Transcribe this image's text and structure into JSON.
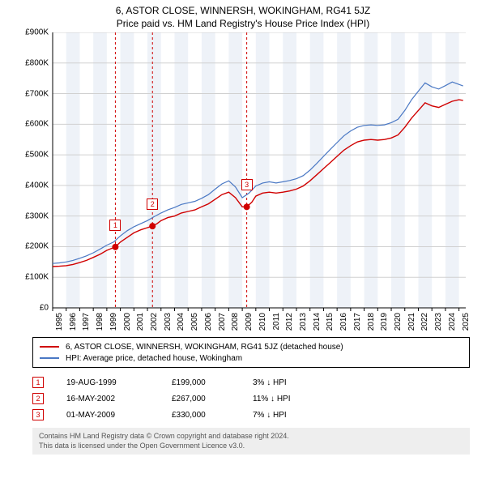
{
  "title": "6, ASTOR CLOSE, WINNERSH, WOKINGHAM, RG41 5JZ",
  "subtitle": "Price paid vs. HM Land Registry's House Price Index (HPI)",
  "chart": {
    "type": "line",
    "plot_bg": "#ffffff",
    "band_bg": "#eef2f8",
    "grid_color": "#d0d0d0",
    "y": {
      "min": 0,
      "max": 900000,
      "step": 100000,
      "label_prefix": "£",
      "label_suffix": "K",
      "divisor": 1000
    },
    "x": {
      "min": 1995,
      "max": 2025.5,
      "ticks": [
        1995,
        1996,
        1997,
        1998,
        1999,
        2000,
        2001,
        2002,
        2003,
        2004,
        2005,
        2006,
        2007,
        2008,
        2009,
        2010,
        2011,
        2012,
        2013,
        2014,
        2015,
        2016,
        2017,
        2018,
        2019,
        2020,
        2021,
        2022,
        2023,
        2024,
        2025
      ]
    },
    "series": [
      {
        "name": "6, ASTOR CLOSE, WINNERSH, WOKINGHAM, RG41 5JZ (detached house)",
        "color": "#d00000",
        "width": 1.4,
        "points": [
          [
            1995.0,
            135000
          ],
          [
            1995.5,
            136000
          ],
          [
            1996.0,
            138000
          ],
          [
            1996.5,
            142000
          ],
          [
            1997.0,
            148000
          ],
          [
            1997.5,
            155000
          ],
          [
            1998.0,
            165000
          ],
          [
            1998.5,
            175000
          ],
          [
            1999.0,
            188000
          ],
          [
            1999.63,
            199000
          ],
          [
            2000.0,
            215000
          ],
          [
            2000.5,
            230000
          ],
          [
            2001.0,
            245000
          ],
          [
            2001.5,
            255000
          ],
          [
            2002.0,
            262000
          ],
          [
            2002.37,
            267000
          ],
          [
            2002.7,
            275000
          ],
          [
            2003.0,
            285000
          ],
          [
            2003.5,
            295000
          ],
          [
            2004.0,
            300000
          ],
          [
            2004.5,
            310000
          ],
          [
            2005.0,
            315000
          ],
          [
            2005.5,
            320000
          ],
          [
            2006.0,
            330000
          ],
          [
            2006.5,
            340000
          ],
          [
            2007.0,
            355000
          ],
          [
            2007.5,
            370000
          ],
          [
            2008.0,
            378000
          ],
          [
            2008.5,
            360000
          ],
          [
            2009.0,
            330000
          ],
          [
            2009.33,
            330000
          ],
          [
            2009.7,
            345000
          ],
          [
            2010.0,
            365000
          ],
          [
            2010.5,
            375000
          ],
          [
            2011.0,
            378000
          ],
          [
            2011.5,
            375000
          ],
          [
            2012.0,
            378000
          ],
          [
            2012.5,
            382000
          ],
          [
            2013.0,
            388000
          ],
          [
            2013.5,
            398000
          ],
          [
            2014.0,
            415000
          ],
          [
            2014.5,
            435000
          ],
          [
            2015.0,
            455000
          ],
          [
            2015.5,
            475000
          ],
          [
            2016.0,
            495000
          ],
          [
            2016.5,
            515000
          ],
          [
            2017.0,
            530000
          ],
          [
            2017.5,
            542000
          ],
          [
            2018.0,
            548000
          ],
          [
            2018.5,
            550000
          ],
          [
            2019.0,
            548000
          ],
          [
            2019.5,
            550000
          ],
          [
            2020.0,
            555000
          ],
          [
            2020.5,
            565000
          ],
          [
            2021.0,
            590000
          ],
          [
            2021.5,
            620000
          ],
          [
            2022.0,
            645000
          ],
          [
            2022.5,
            670000
          ],
          [
            2023.0,
            660000
          ],
          [
            2023.5,
            655000
          ],
          [
            2024.0,
            665000
          ],
          [
            2024.5,
            675000
          ],
          [
            2025.0,
            680000
          ],
          [
            2025.3,
            678000
          ]
        ]
      },
      {
        "name": "HPI: Average price, detached house, Wokingham",
        "color": "#4a78c4",
        "width": 1.2,
        "points": [
          [
            1995.0,
            145000
          ],
          [
            1995.5,
            147000
          ],
          [
            1996.0,
            150000
          ],
          [
            1996.5,
            155000
          ],
          [
            1997.0,
            162000
          ],
          [
            1997.5,
            170000
          ],
          [
            1998.0,
            180000
          ],
          [
            1998.5,
            192000
          ],
          [
            1999.0,
            205000
          ],
          [
            1999.5,
            215000
          ],
          [
            2000.0,
            235000
          ],
          [
            2000.5,
            252000
          ],
          [
            2001.0,
            265000
          ],
          [
            2001.5,
            275000
          ],
          [
            2002.0,
            285000
          ],
          [
            2002.5,
            298000
          ],
          [
            2003.0,
            310000
          ],
          [
            2003.5,
            320000
          ],
          [
            2004.0,
            328000
          ],
          [
            2004.5,
            338000
          ],
          [
            2005.0,
            343000
          ],
          [
            2005.5,
            348000
          ],
          [
            2006.0,
            358000
          ],
          [
            2006.5,
            370000
          ],
          [
            2007.0,
            388000
          ],
          [
            2007.5,
            405000
          ],
          [
            2008.0,
            415000
          ],
          [
            2008.5,
            395000
          ],
          [
            2009.0,
            360000
          ],
          [
            2009.5,
            375000
          ],
          [
            2010.0,
            398000
          ],
          [
            2010.5,
            408000
          ],
          [
            2011.0,
            412000
          ],
          [
            2011.5,
            408000
          ],
          [
            2012.0,
            412000
          ],
          [
            2012.5,
            416000
          ],
          [
            2013.0,
            422000
          ],
          [
            2013.5,
            432000
          ],
          [
            2014.0,
            450000
          ],
          [
            2014.5,
            472000
          ],
          [
            2015.0,
            495000
          ],
          [
            2015.5,
            518000
          ],
          [
            2016.0,
            540000
          ],
          [
            2016.5,
            562000
          ],
          [
            2017.0,
            578000
          ],
          [
            2017.5,
            590000
          ],
          [
            2018.0,
            596000
          ],
          [
            2018.5,
            598000
          ],
          [
            2019.0,
            596000
          ],
          [
            2019.5,
            598000
          ],
          [
            2020.0,
            605000
          ],
          [
            2020.5,
            616000
          ],
          [
            2021.0,
            645000
          ],
          [
            2021.5,
            680000
          ],
          [
            2022.0,
            708000
          ],
          [
            2022.5,
            735000
          ],
          [
            2023.0,
            722000
          ],
          [
            2023.5,
            715000
          ],
          [
            2024.0,
            726000
          ],
          [
            2024.5,
            738000
          ],
          [
            2025.0,
            730000
          ],
          [
            2025.3,
            725000
          ]
        ]
      }
    ],
    "sale_markers": [
      {
        "n": "1",
        "x": 1999.63,
        "y": 199000,
        "dash_color": "#d00000"
      },
      {
        "n": "2",
        "x": 2002.37,
        "y": 267000,
        "dash_color": "#d00000"
      },
      {
        "n": "3",
        "x": 2009.33,
        "y": 330000,
        "dash_color": "#d00000"
      }
    ],
    "sale_dot": {
      "fill": "#d00000",
      "r": 4
    }
  },
  "legend": {
    "border": "#000000",
    "items": [
      {
        "color": "#d00000",
        "label": "6, ASTOR CLOSE, WINNERSH, WOKINGHAM, RG41 5JZ (detached house)"
      },
      {
        "color": "#4a78c4",
        "label": "HPI: Average price, detached house, Wokingham"
      }
    ]
  },
  "sales": [
    {
      "n": "1",
      "date": "19-AUG-1999",
      "price": "£199,000",
      "diff": "3% ↓ HPI"
    },
    {
      "n": "2",
      "date": "16-MAY-2002",
      "price": "£267,000",
      "diff": "11% ↓ HPI"
    },
    {
      "n": "3",
      "date": "01-MAY-2009",
      "price": "£330,000",
      "diff": "7% ↓ HPI"
    }
  ],
  "footer": {
    "bg": "#eeeeee",
    "color": "#555555",
    "line1": "Contains HM Land Registry data © Crown copyright and database right 2024.",
    "line2": "This data is licensed under the Open Government Licence v3.0."
  }
}
